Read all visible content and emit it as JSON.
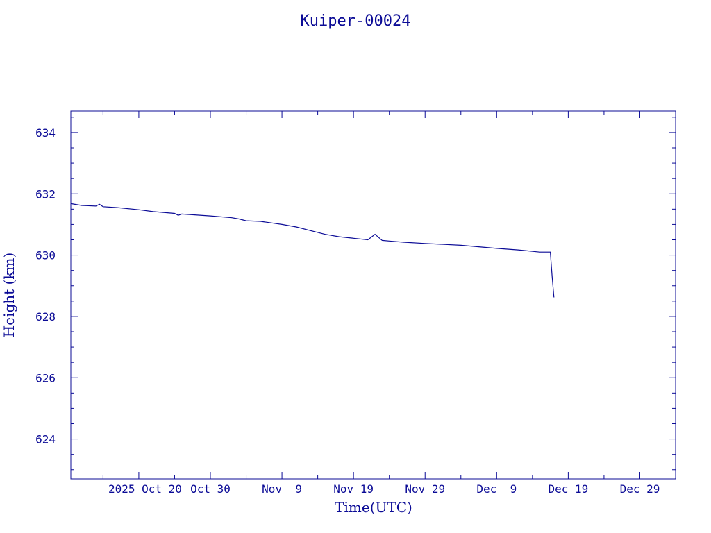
{
  "chart_data": {
    "type": "line",
    "title": "Kuiper-00024",
    "xlabel": "Time(UTC)",
    "ylabel": "Height (km)",
    "x_tick_labels": [
      "2025 Oct 20",
      "Oct 30",
      "Nov  9",
      "Nov 19",
      "Nov 29",
      "Dec  9",
      "Dec 19",
      "Dec 29"
    ],
    "x_tick_dates": [
      "2025-10-20",
      "2025-10-30",
      "2025-11-09",
      "2025-11-19",
      "2025-11-29",
      "2025-12-09",
      "2025-12-19",
      "2025-12-29"
    ],
    "xlim": [
      "2025-10-10T12:00",
      "2026-01-03"
    ],
    "y_ticks": [
      624,
      626,
      628,
      630,
      632,
      634
    ],
    "ylim": [
      622.7,
      634.7
    ],
    "grid": false,
    "color": "#0b0b96",
    "series": [
      {
        "x": [
          "2025-10-10T12:00",
          "2025-10-12",
          "2025-10-14",
          "2025-10-14T12:00",
          "2025-10-15",
          "2025-10-17",
          "2025-10-20",
          "2025-10-22",
          "2025-10-25",
          "2025-10-25T12:00",
          "2025-10-26",
          "2025-10-30",
          "2025-11-02",
          "2025-11-03",
          "2025-11-04",
          "2025-11-06",
          "2025-11-09",
          "2025-11-11",
          "2025-11-13",
          "2025-11-15",
          "2025-11-17",
          "2025-11-19",
          "2025-11-21",
          "2025-11-22",
          "2025-11-23",
          "2025-11-24",
          "2025-11-26",
          "2025-11-29",
          "2025-12-04",
          "2025-12-09",
          "2025-12-12",
          "2025-12-15",
          "2025-12-16T12:00",
          "2025-12-16T18:00",
          "2025-12-17"
        ],
        "y": [
          631.68,
          631.62,
          631.6,
          631.66,
          631.58,
          631.55,
          631.48,
          631.42,
          631.36,
          631.3,
          631.34,
          631.28,
          631.22,
          631.18,
          631.12,
          631.1,
          631.0,
          630.92,
          630.8,
          630.68,
          630.6,
          630.55,
          630.5,
          630.68,
          630.48,
          630.46,
          630.42,
          630.38,
          630.32,
          630.22,
          630.17,
          630.1,
          630.1,
          629.3,
          628.62
        ]
      }
    ]
  }
}
